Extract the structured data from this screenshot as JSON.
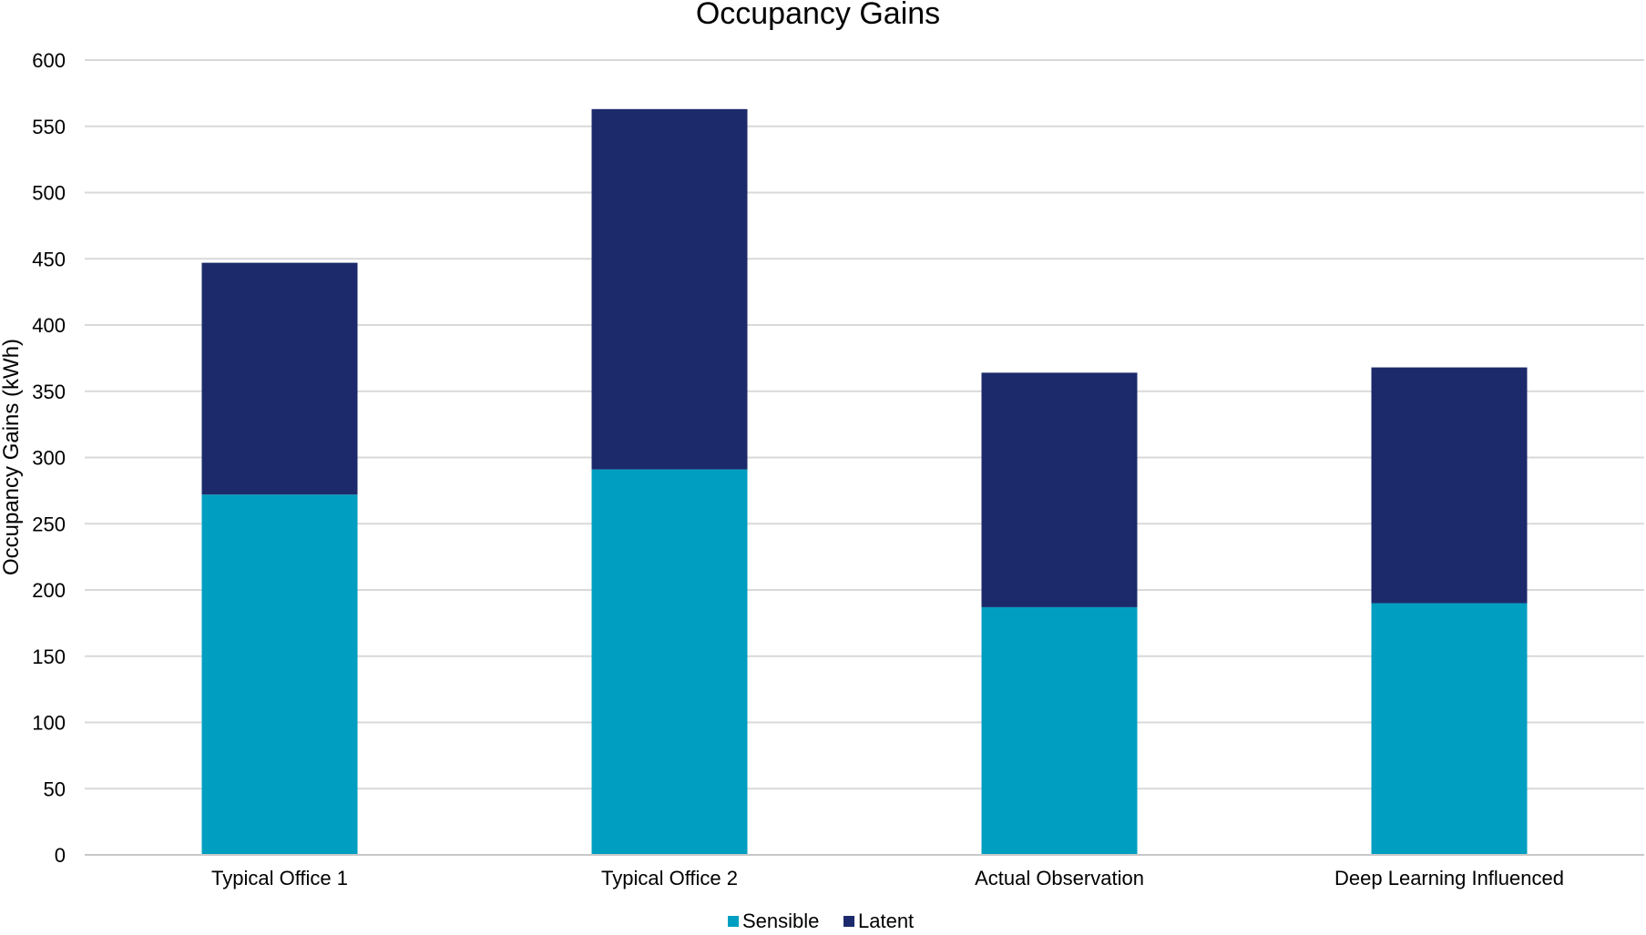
{
  "chart_data": {
    "type": "bar",
    "stacked": true,
    "title": "Occupancy Gains",
    "xlabel": "",
    "ylabel": "Occupancy Gains (kWh)",
    "ylim": [
      0,
      600
    ],
    "yticks": [
      0,
      50,
      100,
      150,
      200,
      250,
      300,
      350,
      400,
      450,
      500,
      550,
      600
    ],
    "grid": true,
    "legend_position": "bottom",
    "categories": [
      "Typical Office 1",
      "Typical Office 2",
      "Actual Observation",
      "Deep Learning Influenced"
    ],
    "series": [
      {
        "name": "Sensible",
        "color": "#009EC1",
        "values": [
          272,
          291,
          187,
          190
        ]
      },
      {
        "name": "Latent",
        "color": "#1C2A6B",
        "values": [
          175,
          272,
          177,
          178
        ]
      }
    ]
  }
}
